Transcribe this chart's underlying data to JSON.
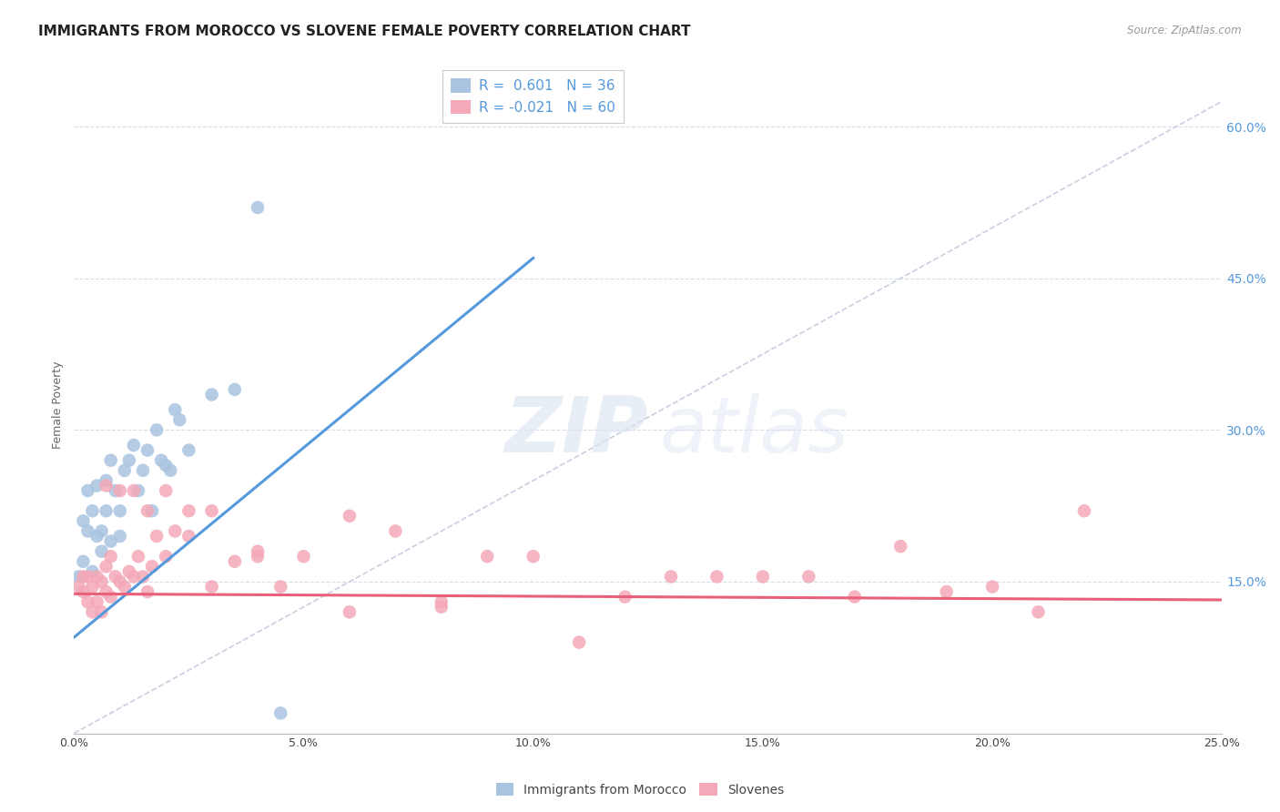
{
  "title": "IMMIGRANTS FROM MOROCCO VS SLOVENE FEMALE POVERTY CORRELATION CHART",
  "source": "Source: ZipAtlas.com",
  "ylabel": "Female Poverty",
  "x_tick_labels": [
    "0.0%",
    "5.0%",
    "10.0%",
    "15.0%",
    "20.0%",
    "25.0%"
  ],
  "x_tick_values": [
    0.0,
    0.05,
    0.1,
    0.15,
    0.2,
    0.25
  ],
  "y_tick_labels": [
    "15.0%",
    "30.0%",
    "45.0%",
    "60.0%"
  ],
  "y_tick_values": [
    0.15,
    0.3,
    0.45,
    0.6
  ],
  "xlim": [
    0.0,
    0.25
  ],
  "ylim": [
    0.0,
    0.65
  ],
  "legend_label1": "Immigrants from Morocco",
  "legend_label2": "Slovenes",
  "R1": "0.601",
  "N1": "36",
  "R2": "-0.021",
  "N2": "60",
  "color1": "#a8c4e0",
  "color2": "#f4a8b8",
  "line_color1": "#5599dd",
  "line_color2": "#e8607a",
  "dashed_line_color": "#c8cfe0",
  "watermark_zip": "ZIP",
  "watermark_atlas": "atlas",
  "scatter1_x": [
    0.001,
    0.002,
    0.002,
    0.003,
    0.003,
    0.004,
    0.004,
    0.005,
    0.005,
    0.006,
    0.006,
    0.007,
    0.007,
    0.008,
    0.008,
    0.009,
    0.01,
    0.01,
    0.011,
    0.012,
    0.013,
    0.014,
    0.015,
    0.016,
    0.017,
    0.018,
    0.019,
    0.02,
    0.021,
    0.022,
    0.023,
    0.025,
    0.03,
    0.035,
    0.04,
    0.045
  ],
  "scatter1_y": [
    0.155,
    0.17,
    0.21,
    0.2,
    0.24,
    0.16,
    0.22,
    0.195,
    0.245,
    0.18,
    0.2,
    0.22,
    0.25,
    0.19,
    0.27,
    0.24,
    0.195,
    0.22,
    0.26,
    0.27,
    0.285,
    0.24,
    0.26,
    0.28,
    0.22,
    0.3,
    0.27,
    0.265,
    0.26,
    0.32,
    0.31,
    0.28,
    0.335,
    0.34,
    0.52,
    0.02
  ],
  "scatter2_x": [
    0.001,
    0.002,
    0.002,
    0.003,
    0.003,
    0.004,
    0.004,
    0.005,
    0.005,
    0.006,
    0.006,
    0.007,
    0.007,
    0.008,
    0.008,
    0.009,
    0.01,
    0.011,
    0.012,
    0.013,
    0.014,
    0.015,
    0.016,
    0.017,
    0.018,
    0.02,
    0.022,
    0.025,
    0.03,
    0.035,
    0.04,
    0.045,
    0.05,
    0.06,
    0.07,
    0.08,
    0.09,
    0.1,
    0.11,
    0.12,
    0.13,
    0.14,
    0.15,
    0.16,
    0.17,
    0.18,
    0.19,
    0.2,
    0.21,
    0.22,
    0.007,
    0.01,
    0.013,
    0.016,
    0.02,
    0.025,
    0.03,
    0.04,
    0.06,
    0.08
  ],
  "scatter2_y": [
    0.145,
    0.14,
    0.155,
    0.13,
    0.155,
    0.12,
    0.145,
    0.13,
    0.155,
    0.12,
    0.15,
    0.14,
    0.165,
    0.135,
    0.175,
    0.155,
    0.15,
    0.145,
    0.16,
    0.155,
    0.175,
    0.155,
    0.14,
    0.165,
    0.195,
    0.175,
    0.2,
    0.195,
    0.145,
    0.17,
    0.175,
    0.145,
    0.175,
    0.215,
    0.2,
    0.125,
    0.175,
    0.175,
    0.09,
    0.135,
    0.155,
    0.155,
    0.155,
    0.155,
    0.135,
    0.185,
    0.14,
    0.145,
    0.12,
    0.22,
    0.245,
    0.24,
    0.24,
    0.22,
    0.24,
    0.22,
    0.22,
    0.18,
    0.12,
    0.13
  ],
  "reg_line1_x": [
    0.0,
    0.1
  ],
  "reg_line1_y": [
    0.095,
    0.47
  ],
  "reg_line2_x": [
    0.0,
    0.25
  ],
  "reg_line2_y": [
    0.138,
    0.132
  ],
  "diag_line_x": [
    0.0,
    0.25
  ],
  "diag_line_y": [
    0.0,
    0.625
  ],
  "background_color": "#ffffff",
  "grid_color": "#d8dce8",
  "title_fontsize": 11,
  "axis_label_fontsize": 9,
  "tick_fontsize": 9
}
